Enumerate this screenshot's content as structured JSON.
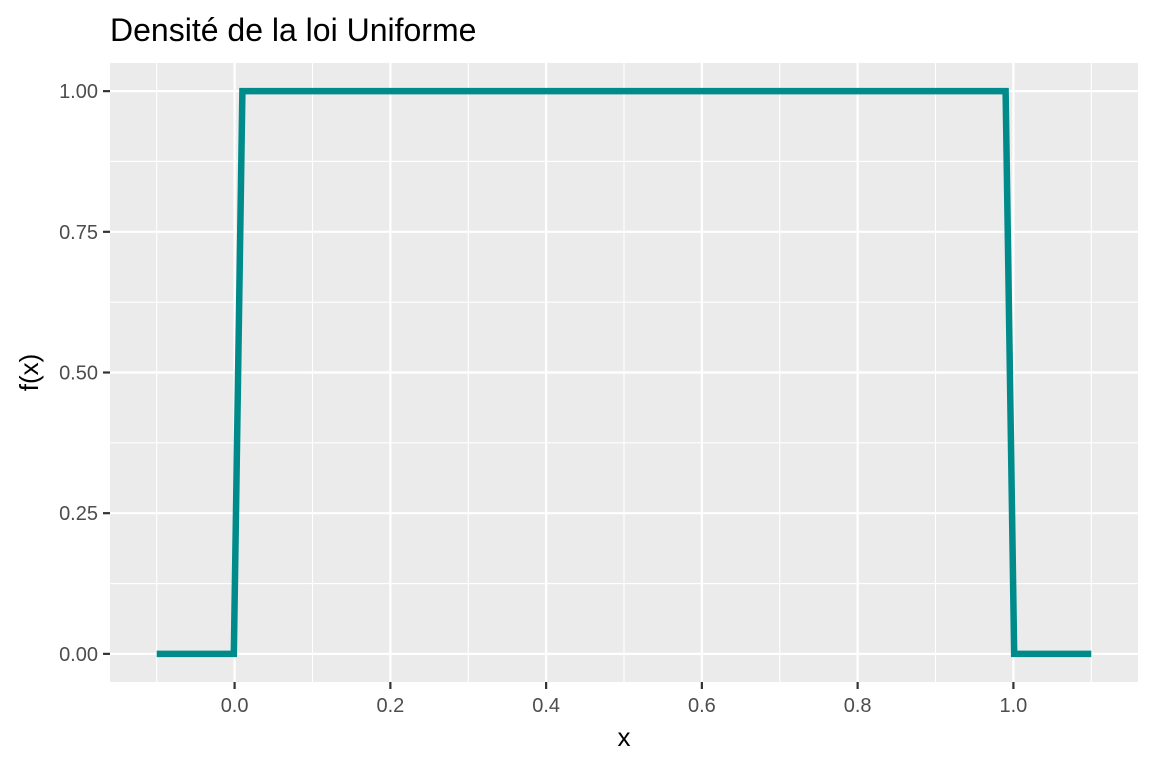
{
  "chart_data": {
    "type": "line",
    "title": "Densité de la loi Uniforme",
    "xlabel": "x",
    "ylabel": "f(x)",
    "xlim": [
      -0.16,
      1.16
    ],
    "ylim": [
      -0.05,
      1.05
    ],
    "x_ticks": [
      0.0,
      0.2,
      0.4,
      0.6,
      0.8,
      1.0
    ],
    "x_tick_labels": [
      "0.0",
      "0.2",
      "0.4",
      "0.6",
      "0.8",
      "1.0"
    ],
    "x_minor_ticks": [
      -0.1,
      0.1,
      0.3,
      0.5,
      0.7,
      0.9,
      1.1
    ],
    "y_ticks": [
      0.0,
      0.25,
      0.5,
      0.75,
      1.0
    ],
    "y_tick_labels": [
      "0.00",
      "0.25",
      "0.50",
      "0.75",
      "1.00"
    ],
    "y_minor_ticks": [
      0.125,
      0.375,
      0.625,
      0.875
    ],
    "grid": true,
    "panel_background": "#ebebeb",
    "series": [
      {
        "color": "#008b8b",
        "x": [
          -0.1,
          -0.001,
          0.01,
          0.99,
          1.001,
          1.1
        ],
        "y": [
          0,
          0,
          1,
          1,
          0,
          0
        ]
      }
    ]
  }
}
